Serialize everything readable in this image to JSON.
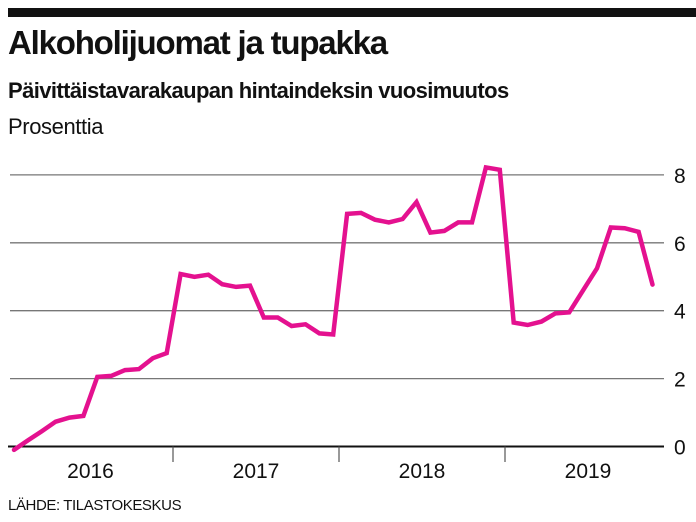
{
  "chart_data": {
    "type": "line",
    "title": "Alkoholijuomat ja tupakka",
    "subtitle": "Päivittäistavarakaupan hintaindeksin vuosimuutos",
    "ylabel": "Prosenttia",
    "xlabel": "",
    "source": "LÄHDE: TILASTOKESKUS",
    "ylim": [
      0,
      8
    ],
    "yticks": [
      "0",
      "2",
      "4",
      "6",
      "8"
    ],
    "ytick_values": [
      0,
      2,
      4,
      6,
      8
    ],
    "year_labels": [
      "2016",
      "2017",
      "2018",
      "2019"
    ],
    "grid": true,
    "x": "monthly, Jan 2016 – Nov 2019",
    "series": [
      {
        "name": "Alkoholijuomat ja tupakka",
        "color": "#e4118f",
        "values": [
          -0.1,
          0.18,
          0.45,
          0.73,
          0.85,
          0.9,
          2.05,
          2.08,
          2.25,
          2.28,
          2.6,
          2.75,
          5.08,
          5.0,
          5.06,
          4.78,
          4.7,
          4.74,
          3.8,
          3.8,
          3.55,
          3.6,
          3.33,
          3.3,
          6.85,
          6.88,
          6.68,
          6.6,
          6.7,
          7.2,
          6.3,
          6.35,
          6.6,
          6.6,
          8.22,
          8.15,
          3.65,
          3.58,
          3.68,
          3.92,
          3.95,
          4.6,
          5.25,
          6.45,
          6.43,
          6.32,
          4.77
        ]
      }
    ]
  }
}
